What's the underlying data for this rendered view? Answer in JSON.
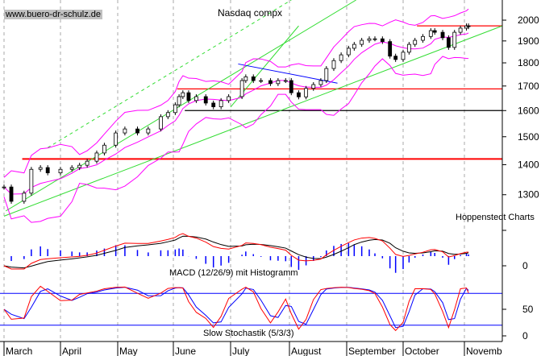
{
  "watermark": "www.buero-dr-schulz.de",
  "chart_data": {
    "type": "candlestick",
    "title": "Nasdaq compx",
    "source_label": "Hoppenstedt Charts",
    "price_axis": {
      "scale": "log",
      "range": [
        1230,
        2100
      ],
      "ticks": [
        2000,
        1900,
        1800,
        1700,
        1600,
        1500,
        1400,
        1300
      ],
      "side": "right"
    },
    "x_axis": {
      "ticks": [
        "March",
        "April",
        "May",
        "June",
        "July",
        "August",
        "September",
        "October",
        "Novemb"
      ],
      "grid": "dashed vertical at month starts"
    },
    "closes": [
      [
        "Mar 1",
        1325
      ],
      [
        "Mar 5",
        1279
      ],
      [
        "Mar 12",
        1305
      ],
      [
        "Mar 16",
        1384
      ],
      [
        "Mar 21",
        1390
      ],
      [
        "Mar 25",
        1372
      ],
      [
        "Apr 1",
        1384
      ],
      [
        "Apr 7",
        1390
      ],
      [
        "Apr 11",
        1398
      ],
      [
        "Apr 15",
        1412
      ],
      [
        "Apr 20",
        1441
      ],
      [
        "Apr 24",
        1469
      ],
      [
        "Apr 30",
        1514
      ],
      [
        "May 5",
        1529
      ],
      [
        "May 12",
        1514
      ],
      [
        "May 18",
        1529
      ],
      [
        "May 25",
        1576
      ],
      [
        "May 29",
        1592
      ],
      [
        "Jun 2",
        1623
      ],
      [
        "Jun 4",
        1656
      ],
      [
        "Jun 6",
        1672
      ],
      [
        "Jun 9",
        1640
      ],
      [
        "Jun 13",
        1656
      ],
      [
        "Jun 18",
        1630
      ],
      [
        "Jun 22",
        1615
      ],
      [
        "Jun 26",
        1640
      ],
      [
        "Jun 30",
        1656
      ],
      [
        "Jul 7",
        1723
      ],
      [
        "Jul 9",
        1739
      ],
      [
        "Jul 13",
        1723
      ],
      [
        "Jul 17",
        1723
      ],
      [
        "Jul 22",
        1710
      ],
      [
        "Jul 26",
        1723
      ],
      [
        "Jul 30",
        1723
      ],
      [
        "Aug 2",
        1672
      ],
      [
        "Aug 6",
        1655
      ],
      [
        "Aug 10",
        1690
      ],
      [
        "Aug 14",
        1706
      ],
      [
        "Aug 18",
        1723
      ],
      [
        "Aug 21",
        1775
      ],
      [
        "Aug 25",
        1810
      ],
      [
        "Aug 29",
        1836
      ],
      [
        "Sep 2",
        1866
      ],
      [
        "Sep 5",
        1884
      ],
      [
        "Sep 9",
        1903
      ],
      [
        "Sep 13",
        1910
      ],
      [
        "Sep 16",
        1910
      ],
      [
        "Sep 20",
        1897
      ],
      [
        "Sep 24",
        1830
      ],
      [
        "Sep 27",
        1815
      ],
      [
        "Oct 1",
        1848
      ],
      [
        "Oct 4",
        1884
      ],
      [
        "Oct 7",
        1903
      ],
      [
        "Oct 11",
        1921
      ],
      [
        "Oct 15",
        1949
      ],
      [
        "Oct 17",
        1941
      ],
      [
        "Oct 21",
        1915
      ],
      [
        "Oct 24",
        1870
      ],
      [
        "Oct 27",
        1941
      ],
      [
        "Oct 30",
        1961
      ],
      [
        "Nov 2",
        1972
      ],
      [
        "Nov 3",
        1968
      ]
    ],
    "overlays": {
      "bollinger_color": "#ff00ff",
      "horizontal_lines": [
        {
          "price": 1420,
          "from": "Mar 11",
          "to": "Nov 21",
          "color": "#ff0000"
        },
        {
          "price": 1688,
          "from": "Jun 3",
          "to": "Nov 21",
          "color": "#ff0000"
        },
        {
          "price": 1600,
          "from": "Jun 7",
          "to": "Nov 21",
          "color": "#000000"
        },
        {
          "price": 1972,
          "from": "Oct 8",
          "to": "Nov 21",
          "color": "#ff0000"
        }
      ],
      "trend_lines": [
        {
          "from": [
            "Mar 2",
            1249
          ],
          "to": [
            "Sep 6",
            2102
          ],
          "color": "#33dd33",
          "dashed": false
        },
        {
          "from": [
            "Mar 1",
            1233
          ],
          "to": [
            "Nov 21",
            1972
          ],
          "color": "#33dd33",
          "dashed": false
        },
        {
          "from": [
            "Mar 25",
            1460
          ],
          "to": [
            "Aug 2",
            2102
          ],
          "color": "#33dd33",
          "dashed": true
        },
        {
          "from": [
            "Jul 1",
            1614
          ],
          "to": [
            "Aug 6",
            1972
          ],
          "color": "#33dd33",
          "dashed": false
        },
        {
          "from": [
            "Jul 5",
            1795
          ],
          "to": [
            "Aug 27",
            1712
          ],
          "color": "#0000ff",
          "dashed": false
        }
      ]
    },
    "macd": {
      "label": "MACD (12/26/9) mit Histogramm",
      "zero_tick": "0",
      "colors": {
        "macd": "#ff0000",
        "signal": "#000000",
        "histogram": "#0000ff"
      }
    },
    "stochastic": {
      "label": "Slow Stochastik (5/3/3)",
      "ticks": [
        "50",
        "0"
      ],
      "levels": [
        80,
        20
      ],
      "colors": {
        "k": "#ff0000",
        "d": "#0000ff",
        "levels": "#0000ff"
      }
    }
  }
}
